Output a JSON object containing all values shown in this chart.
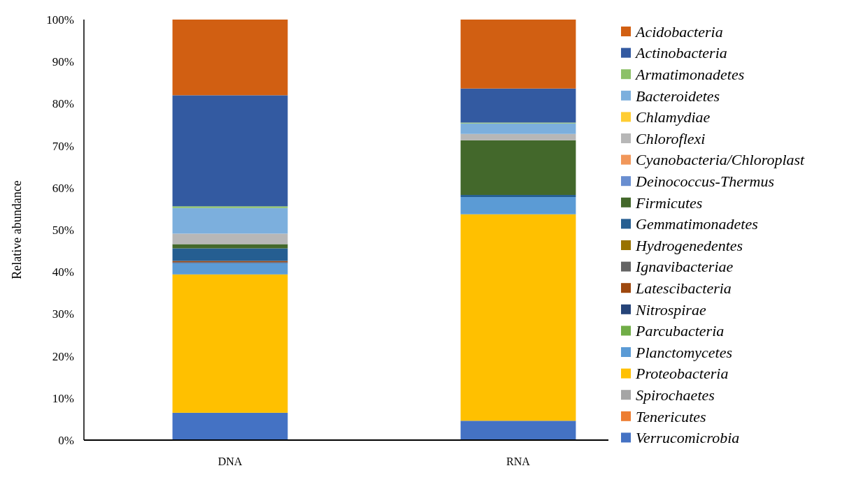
{
  "chart_data": {
    "type": "bar",
    "stacked": true,
    "ylabel": "Relative abundance",
    "categories": [
      "DNA",
      "RNA"
    ],
    "ylim": [
      0,
      100
    ],
    "yticks": [
      {
        "value": 0,
        "label": "0%"
      },
      {
        "value": 10,
        "label": "10%"
      },
      {
        "value": 20,
        "label": "20%"
      },
      {
        "value": 30,
        "label": "30%"
      },
      {
        "value": 40,
        "label": "40%"
      },
      {
        "value": 50,
        "label": "50%"
      },
      {
        "value": 60,
        "label": "60%"
      },
      {
        "value": 70,
        "label": "70%"
      },
      {
        "value": 80,
        "label": "80%"
      },
      {
        "value": 90,
        "label": "90%"
      },
      {
        "value": 100,
        "label": "100%"
      }
    ],
    "legend": "right",
    "grid": false,
    "series": [
      {
        "name": "Verrucomicrobia",
        "color": "#4472c4",
        "values": [
          6.5,
          4.6
        ]
      },
      {
        "name": "Tenericutes",
        "color": "#ed7d31",
        "values": [
          0,
          0
        ]
      },
      {
        "name": "Spirochaetes",
        "color": "#a5a5a5",
        "values": [
          0,
          0
        ]
      },
      {
        "name": "Proteobacteria",
        "color": "#ffc000",
        "values": [
          32.9,
          49.1
        ]
      },
      {
        "name": "Planctomycetes",
        "color": "#5b9bd5",
        "values": [
          2.7,
          4.1
        ]
      },
      {
        "name": "Parcubacteria",
        "color": "#70ad47",
        "values": [
          0,
          0
        ]
      },
      {
        "name": "Nitrospirae",
        "color": "#264478",
        "values": [
          0.2,
          0
        ]
      },
      {
        "name": "Latescibacteria",
        "color": "#9e480e",
        "values": [
          0.3,
          0
        ]
      },
      {
        "name": "Ignavibacteriae",
        "color": "#636363",
        "values": [
          0,
          0
        ]
      },
      {
        "name": "Hydrogenedentes",
        "color": "#997300",
        "values": [
          0,
          0
        ]
      },
      {
        "name": "Gemmatimonadetes",
        "color": "#255e91",
        "values": [
          3.0,
          0.5
        ]
      },
      {
        "name": "Firmicutes",
        "color": "#43682b",
        "values": [
          1.0,
          13.0
        ]
      },
      {
        "name": "Deinococcus-Thermus",
        "color": "#698ed0",
        "values": [
          0,
          0
        ]
      },
      {
        "name": "Cyanobacteria/Chloroplast",
        "color": "#f1975a",
        "values": [
          0,
          0
        ]
      },
      {
        "name": "Chloroflexi",
        "color": "#b7b7b7",
        "values": [
          2.5,
          1.5
        ]
      },
      {
        "name": "Chlamydiae",
        "color": "#ffcd33",
        "values": [
          0,
          0
        ]
      },
      {
        "name": "Bacteroidetes",
        "color": "#7cafdd",
        "values": [
          6.1,
          2.5
        ]
      },
      {
        "name": "Armatimonadetes",
        "color": "#8cc168",
        "values": [
          0.4,
          0.2
        ]
      },
      {
        "name": "Actinobacteria",
        "color": "#335aa1",
        "values": [
          26.4,
          8.1
        ]
      },
      {
        "name": "Acidobacteria",
        "color": "#d15f12",
        "values": [
          18.0,
          16.4
        ]
      }
    ]
  }
}
